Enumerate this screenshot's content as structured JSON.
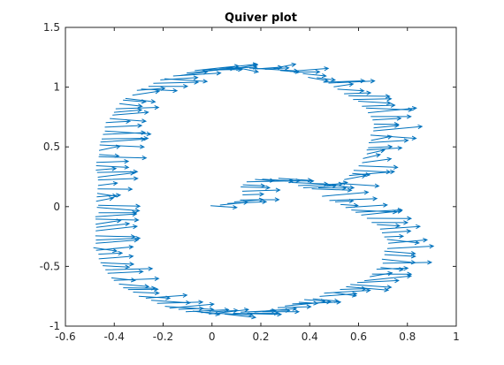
{
  "chart_data": {
    "type": "quiver",
    "title": "Quiver plot",
    "xlabel": "",
    "ylabel": "",
    "xlim": [
      -0.6,
      1
    ],
    "ylim": [
      -1,
      1.5
    ],
    "x_ticks": [
      "-0.6",
      "-0.4",
      "-0.2",
      "0",
      "0.2",
      "0.4",
      "0.6",
      "0.8",
      "1"
    ],
    "y_ticks": [
      "-1",
      "-0.5",
      "0",
      "0.5",
      "1",
      "1.5"
    ],
    "grid": false,
    "box": true,
    "color": "#0072BD",
    "outline_path": [
      [
        0.0,
        0.0
      ],
      [
        0.07,
        0.03
      ],
      [
        0.12,
        0.07
      ],
      [
        0.12,
        0.12
      ],
      [
        0.11,
        0.17
      ],
      [
        0.14,
        0.21
      ],
      [
        0.2,
        0.23
      ],
      [
        0.28,
        0.23
      ],
      [
        0.33,
        0.2
      ],
      [
        0.36,
        0.16
      ],
      [
        0.4,
        0.15
      ],
      [
        0.47,
        0.17
      ],
      [
        0.53,
        0.2
      ],
      [
        0.58,
        0.3
      ],
      [
        0.63,
        0.42
      ],
      [
        0.65,
        0.55
      ],
      [
        0.66,
        0.68
      ],
      [
        0.64,
        0.8
      ],
      [
        0.58,
        0.9
      ],
      [
        0.5,
        1.0
      ],
      [
        0.43,
        1.07
      ],
      [
        0.33,
        1.13
      ],
      [
        0.2,
        1.16
      ],
      [
        0.06,
        1.16
      ],
      [
        -0.08,
        1.13
      ],
      [
        -0.2,
        1.07
      ],
      [
        -0.31,
        0.97
      ],
      [
        -0.39,
        0.85
      ],
      [
        -0.43,
        0.7
      ],
      [
        -0.46,
        0.55
      ],
      [
        -0.47,
        0.4
      ],
      [
        -0.47,
        0.25
      ],
      [
        -0.47,
        0.1
      ],
      [
        -0.47,
        -0.05
      ],
      [
        -0.48,
        -0.2
      ],
      [
        -0.48,
        -0.35
      ],
      [
        -0.45,
        -0.5
      ],
      [
        -0.4,
        -0.62
      ],
      [
        -0.32,
        -0.72
      ],
      [
        -0.22,
        -0.82
      ],
      [
        -0.1,
        -0.88
      ],
      [
        0.05,
        -0.9
      ],
      [
        0.2,
        -0.88
      ],
      [
        0.33,
        -0.82
      ],
      [
        0.45,
        -0.74
      ],
      [
        0.55,
        -0.67
      ],
      [
        0.64,
        -0.6
      ],
      [
        0.69,
        -0.5
      ],
      [
        0.71,
        -0.38
      ],
      [
        0.72,
        -0.28
      ],
      [
        0.69,
        -0.18
      ],
      [
        0.63,
        -0.1
      ],
      [
        0.56,
        -0.02
      ],
      [
        0.5,
        0.04
      ],
      [
        0.45,
        0.08
      ]
    ],
    "arrow_count": 190,
    "u_range": [
      0.07,
      0.2
    ],
    "v_range": [
      -0.03,
      0.04
    ]
  }
}
